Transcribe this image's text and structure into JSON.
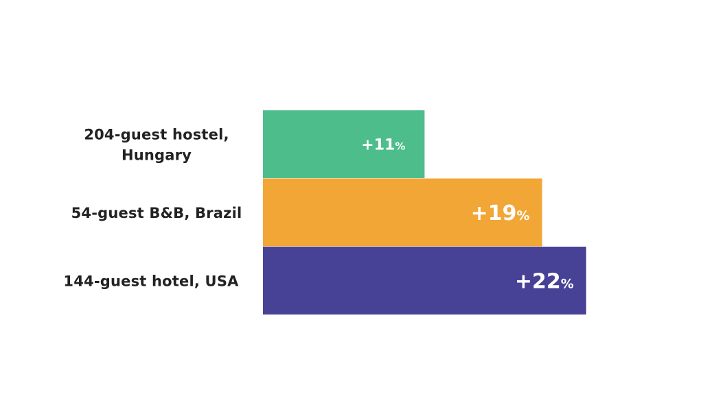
{
  "chart_data": {
    "type": "bar",
    "orientation": "horizontal",
    "categories": [
      [
        "204-guest hostel,",
        "Hungary"
      ],
      [
        "54-guest B&B, Brazil"
      ],
      [
        "144-guest hotel, USA"
      ]
    ],
    "values": [
      11,
      19,
      22
    ],
    "value_labels": [
      {
        "number": "+11",
        "unit": "%"
      },
      {
        "number": "+19",
        "unit": "%"
      },
      {
        "number": "+22",
        "unit": "%"
      }
    ],
    "colors": [
      "#4dbd8c",
      "#f2a636",
      "#474296"
    ],
    "xlim": [
      0,
      22
    ],
    "grid": false,
    "legend": "none",
    "title": "",
    "xlabel": "",
    "ylabel": ""
  }
}
